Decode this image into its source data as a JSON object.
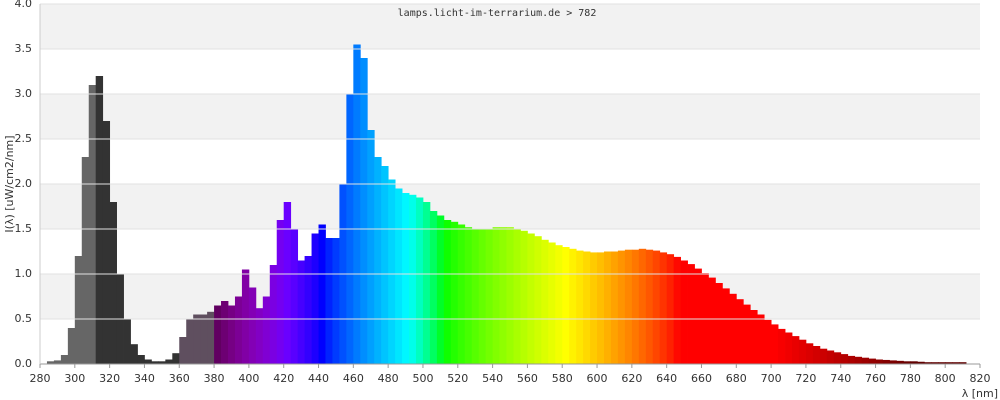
{
  "chart_data": {
    "type": "spectrum",
    "title": "lamps.licht-im-terrarium.de > 782",
    "x_label": "λ [nm]",
    "y_label": "I(λ) [uW/cm2/nm]",
    "colormap": "wavelength",
    "grid": true,
    "xlim": [
      280,
      820
    ],
    "ylim": [
      0,
      4
    ],
    "xticks": [
      280,
      300,
      320,
      340,
      360,
      380,
      400,
      420,
      440,
      460,
      480,
      500,
      520,
      540,
      560,
      580,
      600,
      620,
      640,
      660,
      680,
      700,
      720,
      740,
      760,
      780,
      800,
      820
    ],
    "yticks": [
      {
        "value": 0,
        "label": "0.0"
      },
      0.5,
      {
        "value": 1,
        "label": "1.0"
      },
      1.5,
      {
        "value": 2,
        "label": "2.0"
      },
      2.5,
      {
        "value": 3,
        "label": "3.0"
      },
      3.5,
      {
        "value": 4,
        "label": "4.0"
      }
    ],
    "x": [
      284,
      288,
      292,
      296,
      300,
      304,
      308,
      312,
      316,
      320,
      324,
      328,
      332,
      336,
      340,
      344,
      348,
      352,
      356,
      360,
      364,
      368,
      372,
      376,
      380,
      384,
      388,
      392,
      396,
      400,
      404,
      408,
      412,
      416,
      420,
      424,
      428,
      432,
      436,
      440,
      444,
      448,
      452,
      456,
      460,
      464,
      468,
      472,
      476,
      480,
      484,
      488,
      492,
      496,
      500,
      504,
      508,
      512,
      516,
      520,
      524,
      528,
      532,
      536,
      540,
      544,
      548,
      552,
      556,
      560,
      564,
      568,
      572,
      576,
      580,
      584,
      588,
      592,
      596,
      600,
      604,
      608,
      612,
      616,
      620,
      624,
      628,
      632,
      636,
      640,
      644,
      648,
      652,
      656,
      660,
      664,
      668,
      672,
      676,
      680,
      684,
      688,
      692,
      696,
      700,
      704,
      708,
      712,
      716,
      720,
      724,
      728,
      732,
      736,
      740,
      744,
      748,
      752,
      756,
      760,
      764,
      768,
      772,
      776,
      780,
      784,
      788,
      792,
      796,
      800,
      804,
      808
    ],
    "values": [
      0.03,
      0.04,
      0.1,
      0.4,
      1.2,
      2.3,
      3.1,
      3.2,
      2.7,
      1.8,
      1.0,
      0.5,
      0.22,
      0.1,
      0.05,
      0.03,
      0.03,
      0.05,
      0.12,
      0.3,
      0.5,
      0.55,
      0.55,
      0.58,
      0.65,
      0.7,
      0.65,
      0.75,
      1.05,
      0.85,
      0.62,
      0.75,
      1.1,
      1.6,
      1.8,
      1.5,
      1.15,
      1.2,
      1.45,
      1.55,
      1.4,
      1.4,
      2.0,
      3.0,
      3.55,
      3.4,
      2.6,
      2.3,
      2.2,
      2.05,
      1.95,
      1.9,
      1.88,
      1.85,
      1.8,
      1.7,
      1.65,
      1.6,
      1.58,
      1.55,
      1.52,
      1.5,
      1.5,
      1.5,
      1.52,
      1.52,
      1.52,
      1.5,
      1.48,
      1.45,
      1.42,
      1.38,
      1.35,
      1.32,
      1.3,
      1.28,
      1.26,
      1.25,
      1.24,
      1.24,
      1.25,
      1.25,
      1.26,
      1.27,
      1.27,
      1.28,
      1.27,
      1.26,
      1.24,
      1.22,
      1.19,
      1.15,
      1.11,
      1.06,
      1.01,
      0.96,
      0.9,
      0.84,
      0.78,
      0.72,
      0.66,
      0.6,
      0.55,
      0.49,
      0.44,
      0.39,
      0.35,
      0.31,
      0.27,
      0.23,
      0.2,
      0.17,
      0.15,
      0.13,
      0.11,
      0.09,
      0.08,
      0.07,
      0.06,
      0.05,
      0.045,
      0.04,
      0.035,
      0.03,
      0.03,
      0.025,
      0.02,
      0.02,
      0.02,
      0.02,
      0.02,
      0.02
    ]
  }
}
